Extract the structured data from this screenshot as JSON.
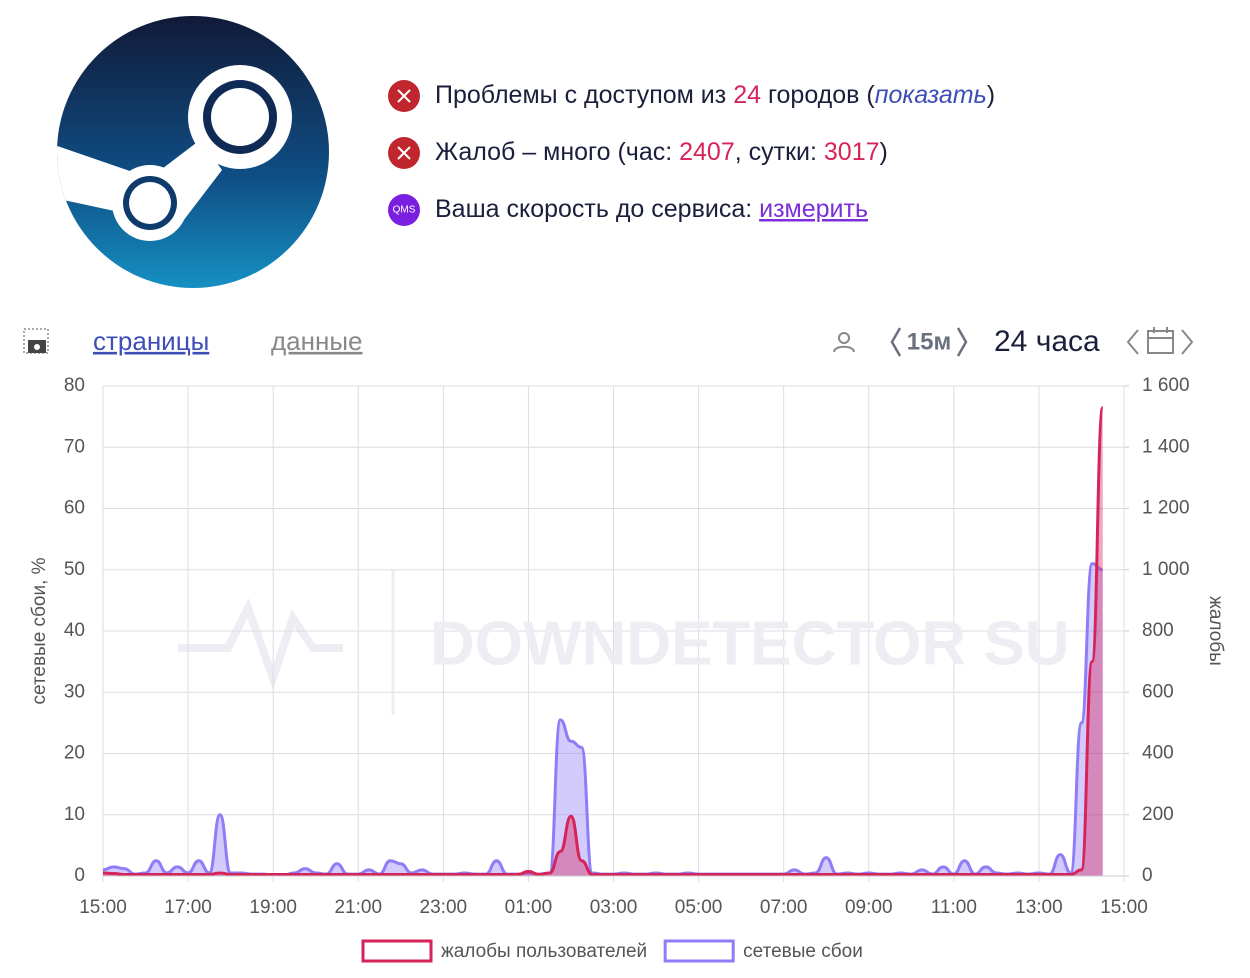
{
  "status": {
    "lines": [
      [
        "Проблемы с доступом из ",
        "24",
        " городов (",
        "показать",
        ")"
      ],
      [
        "Жалоб – много (час: ",
        "2407",
        ", сутки: ",
        "3017",
        ")"
      ],
      [
        "Ваша скорость до сервиса: ",
        "измерить"
      ]
    ],
    "badge": "QMS"
  },
  "toolbar": {
    "tabs": [
      "страницы",
      "данные"
    ],
    "interval": "15м",
    "period": "24 часа"
  },
  "chart_data": {
    "type": "line",
    "watermark": "DOWNDETECTOR SU",
    "ylabel": "сетевые сбои, %",
    "y2label": "жалобы",
    "grid": true,
    "legend": "bottom",
    "categories": [
      "15:00",
      null,
      null,
      null,
      null,
      null,
      null,
      null,
      "17:00",
      null,
      null,
      null,
      null,
      null,
      null,
      null,
      "19:00",
      null,
      null,
      null,
      null,
      null,
      null,
      null,
      "21:00",
      null,
      null,
      null,
      null,
      null,
      null,
      null,
      "23:00",
      null,
      null,
      null,
      null,
      null,
      null,
      null,
      "01:00",
      null,
      null,
      null,
      null,
      null,
      null,
      null,
      "03:00",
      null,
      null,
      null,
      null,
      null,
      null,
      null,
      "05:00",
      null,
      null,
      null,
      null,
      null,
      null,
      null,
      "07:00",
      null,
      null,
      null,
      null,
      null,
      null,
      null,
      "09:00",
      null,
      null,
      null,
      null,
      null,
      null,
      null,
      "11:00",
      null,
      null,
      null,
      null,
      null,
      null,
      null,
      "13:00",
      null,
      null,
      null,
      null,
      null,
      null,
      null,
      "15:00"
    ],
    "ylim": [
      0,
      80
    ],
    "yticks": [
      0,
      10,
      20,
      30,
      40,
      50,
      60,
      70,
      80
    ],
    "y2lim": [
      0,
      1600
    ],
    "y2ticks": [
      0,
      200,
      400,
      600,
      800,
      {
        "value": 1000,
        "label": "1 000"
      },
      {
        "value": 1200,
        "label": "1 200"
      },
      {
        "value": 1400,
        "label": "1 400"
      },
      {
        "value": 1600,
        "label": "1 600"
      }
    ],
    "series": [
      {
        "name": "жалобы пользователей",
        "color": "#d6245a",
        "axis": "y2",
        "values": [
          10,
          8,
          5,
          5,
          5,
          5,
          5,
          5,
          5,
          5,
          5,
          10,
          5,
          5,
          5,
          5,
          5,
          5,
          5,
          5,
          5,
          5,
          5,
          5,
          5,
          5,
          5,
          5,
          5,
          5,
          5,
          5,
          5,
          5,
          5,
          5,
          5,
          5,
          5,
          5,
          15,
          5,
          10,
          80,
          195,
          50,
          5,
          5,
          5,
          5,
          5,
          5,
          5,
          5,
          5,
          5,
          5,
          5,
          5,
          5,
          5,
          5,
          5,
          5,
          5,
          5,
          5,
          5,
          5,
          5,
          5,
          5,
          5,
          5,
          5,
          5,
          5,
          5,
          5,
          5,
          5,
          5,
          5,
          5,
          5,
          5,
          5,
          5,
          5,
          5,
          5,
          5,
          20,
          700,
          1530,
          null,
          null
        ]
      },
      {
        "name": "сетевые сбои",
        "color": "#8f7cf7",
        "values": [
          1,
          1.5,
          1.2,
          0.3,
          0.5,
          2.5,
          0.5,
          1.5,
          0.5,
          2.5,
          0.5,
          10,
          0.5,
          0.5,
          0.3,
          0.3,
          0.2,
          0.2,
          0.5,
          1.2,
          0.5,
          0.3,
          2,
          0.3,
          0.3,
          1,
          0.3,
          2.5,
          2,
          0.5,
          1,
          0.3,
          0.3,
          0.3,
          0.5,
          0.3,
          0.3,
          2.5,
          0.3,
          0.3,
          0.5,
          0.3,
          0.5,
          25.5,
          22,
          21,
          0.5,
          0.3,
          0.3,
          0.5,
          0.3,
          0.3,
          0.5,
          0.3,
          0.3,
          0.5,
          0.3,
          0.3,
          0.3,
          0.3,
          0.3,
          0.3,
          0.3,
          0.3,
          0.3,
          1,
          0.3,
          0.5,
          3,
          0.3,
          0.5,
          0.3,
          0.5,
          0.3,
          0.3,
          0.5,
          0.3,
          1,
          0.3,
          1.5,
          0.3,
          2.5,
          0.3,
          1.5,
          0.5,
          0.3,
          0.5,
          0.3,
          0.5,
          0.3,
          3.5,
          0.5,
          25,
          51,
          50,
          null,
          null
        ]
      }
    ]
  }
}
